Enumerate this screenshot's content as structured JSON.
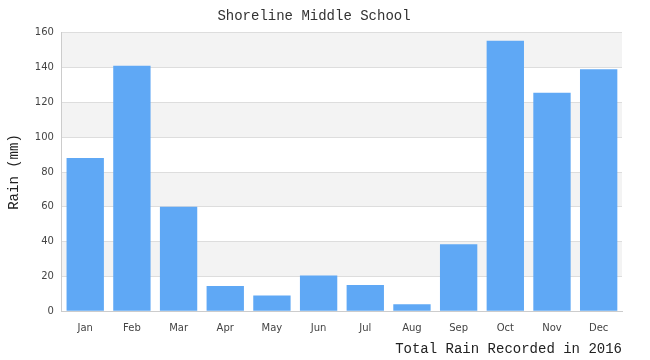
{
  "chart_data": {
    "type": "bar",
    "title": "Shoreline Middle School",
    "xlabel": "Total Rain Recorded in 2016",
    "ylabel": "Rain (mm)",
    "categories": [
      "Jan",
      "Feb",
      "Mar",
      "Apr",
      "May",
      "Jun",
      "Jul",
      "Aug",
      "Sep",
      "Oct",
      "Nov",
      "Dec"
    ],
    "values": [
      88,
      141,
      60,
      14.5,
      9,
      20.5,
      15,
      4,
      38.5,
      155.5,
      125.5,
      139
    ],
    "color": "#5fa8f5",
    "ylim": [
      0,
      160
    ],
    "yticks": [
      0,
      20,
      40,
      60,
      80,
      100,
      120,
      140,
      160
    ],
    "grid": true
  }
}
